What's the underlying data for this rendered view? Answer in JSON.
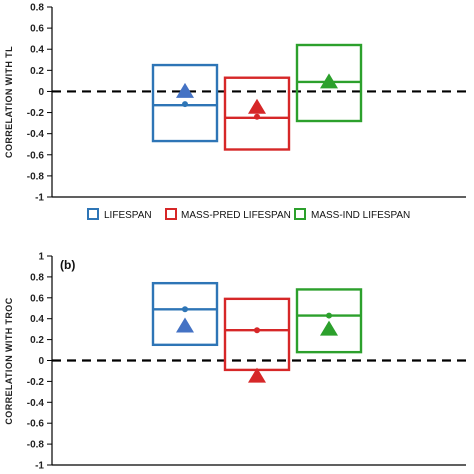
{
  "colors": {
    "lifespan": "#2e75b6",
    "mass_pred": "#d62728",
    "mass_ind": "#2ca02c",
    "lifespan_triangle": "#4472c4",
    "axis": "#000000"
  },
  "legend": {
    "items": [
      {
        "label": "LIFESPAN",
        "color": "#2e75b6"
      },
      {
        "label": "MASS-PRED LIFESPAN",
        "color": "#d62728"
      },
      {
        "label": "MASS-IND LIFESPAN",
        "color": "#2ca02c"
      }
    ]
  },
  "chart_data": [
    {
      "type": "box",
      "panel_label": "",
      "title": "",
      "xlabel": "",
      "ylabel": "CORRELATION  WITH  TL",
      "ylim": [
        -1,
        0.8
      ],
      "yticks": [
        0.8,
        0.6,
        0.4,
        0.2,
        0,
        -0.2,
        -0.4,
        -0.6,
        -0.8,
        -1
      ],
      "yticklabels": [
        "0.8",
        "0.6",
        "0.4",
        "0.2",
        "0",
        "-0.2",
        "-0.4",
        "-0.6",
        "-0.8",
        "-1"
      ],
      "reference_line": 0,
      "series": [
        {
          "name": "LIFESPAN",
          "color": "#2e75b6",
          "triangle_color": "#4472c4",
          "box_low": -0.47,
          "box_high": 0.25,
          "median": -0.13,
          "point": -0.12,
          "triangle": 0.01
        },
        {
          "name": "MASS-PRED LIFESPAN",
          "color": "#d62728",
          "triangle_color": "#d62728",
          "box_low": -0.55,
          "box_high": 0.13,
          "median": -0.25,
          "point": -0.24,
          "triangle": -0.14
        },
        {
          "name": "MASS-IND LIFESPAN",
          "color": "#2ca02c",
          "triangle_color": "#2ca02c",
          "box_low": -0.28,
          "box_high": 0.44,
          "median": 0.09,
          "point": 0.07,
          "triangle": 0.1
        }
      ]
    },
    {
      "type": "box",
      "panel_label": "(b)",
      "title": "",
      "xlabel": "",
      "ylabel": "CORRELATION  WITH  TROC",
      "ylim": [
        -1,
        1
      ],
      "yticks": [
        1,
        0.8,
        0.6,
        0.4,
        0.2,
        0,
        -0.2,
        -0.4,
        -0.6,
        -0.8,
        -1
      ],
      "yticklabels": [
        "1",
        "0.8",
        "0.6",
        "0.4",
        "0.2",
        "0",
        "-0.2",
        "-0.4",
        "-0.6",
        "-0.8",
        "-1"
      ],
      "reference_line": 0,
      "series": [
        {
          "name": "LIFESPAN",
          "color": "#2e75b6",
          "triangle_color": "#4472c4",
          "box_low": 0.15,
          "box_high": 0.74,
          "median": 0.49,
          "point": 0.49,
          "triangle": 0.34
        },
        {
          "name": "MASS-PRED LIFESPAN",
          "color": "#d62728",
          "triangle_color": "#d62728",
          "box_low": -0.09,
          "box_high": 0.59,
          "median": 0.29,
          "point": 0.29,
          "triangle": -0.14
        },
        {
          "name": "MASS-IND LIFESPAN",
          "color": "#2ca02c",
          "triangle_color": "#2ca02c",
          "box_low": 0.08,
          "box_high": 0.68,
          "median": 0.43,
          "point": 0.43,
          "triangle": 0.31
        }
      ]
    }
  ]
}
